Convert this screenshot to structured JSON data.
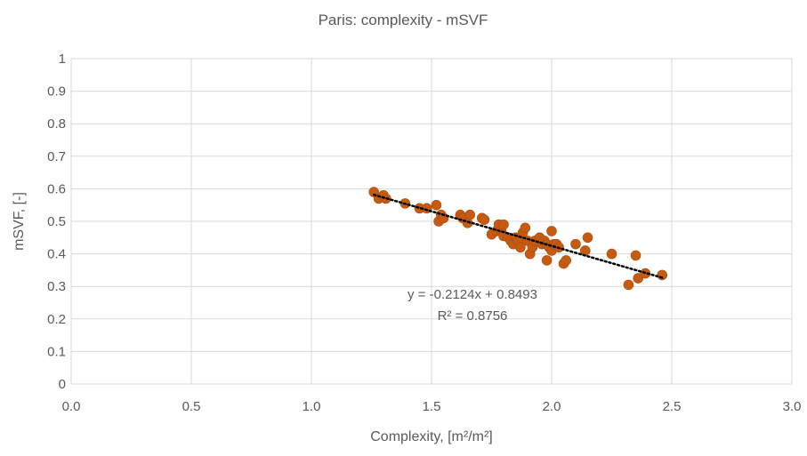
{
  "chart_data": {
    "type": "scatter",
    "title": "Paris: complexity - mSVF",
    "xlabel": "Complexity, [m²/m²]",
    "ylabel": "mSVF, [-]",
    "xlim": [
      0.0,
      3.0
    ],
    "ylim": [
      0,
      1
    ],
    "x_ticks": [
      "0.0",
      "0.5",
      "1.0",
      "1.5",
      "2.0",
      "2.5",
      "3.0"
    ],
    "y_ticks": [
      "0",
      "0.1",
      "0.2",
      "0.3",
      "0.4",
      "0.5",
      "0.6",
      "0.7",
      "0.8",
      "0.9",
      "1"
    ],
    "grid": true,
    "legend": "none",
    "point_color": "#C55A11",
    "trendline": {
      "type": "linear",
      "slope": -0.2124,
      "intercept": 0.8493,
      "color": "#000000",
      "style": "dotted"
    },
    "annotations": {
      "equation": "y = -0.2124x + 0.8493",
      "r_squared": "R² = 0.8756"
    },
    "series": [
      {
        "x": [
          1.26,
          1.28,
          1.3,
          1.31,
          1.39,
          1.45,
          1.48,
          1.52,
          1.53,
          1.54,
          1.55,
          1.62,
          1.63,
          1.65,
          1.66,
          1.71,
          1.72,
          1.75,
          1.77,
          1.78,
          1.79,
          1.8,
          1.8,
          1.82,
          1.83,
          1.84,
          1.85,
          1.86,
          1.87,
          1.88,
          1.89,
          1.9,
          1.91,
          1.92,
          1.93,
          1.95,
          1.96,
          1.97,
          1.98,
          1.98,
          1.99,
          2.0,
          2.0,
          2.01,
          2.02,
          2.03,
          2.05,
          2.06,
          2.1,
          2.14,
          2.15,
          2.25,
          2.32,
          2.35,
          2.36,
          2.39,
          2.46
        ],
        "y": [
          0.59,
          0.57,
          0.58,
          0.57,
          0.555,
          0.54,
          0.54,
          0.55,
          0.5,
          0.52,
          0.51,
          0.52,
          0.51,
          0.495,
          0.52,
          0.51,
          0.505,
          0.46,
          0.47,
          0.49,
          0.47,
          0.49,
          0.455,
          0.45,
          0.44,
          0.43,
          0.45,
          0.44,
          0.42,
          0.465,
          0.48,
          0.44,
          0.4,
          0.42,
          0.44,
          0.45,
          0.43,
          0.44,
          0.43,
          0.38,
          0.42,
          0.41,
          0.47,
          0.43,
          0.43,
          0.42,
          0.37,
          0.38,
          0.43,
          0.41,
          0.45,
          0.4,
          0.305,
          0.395,
          0.325,
          0.34,
          0.335
        ]
      }
    ]
  }
}
